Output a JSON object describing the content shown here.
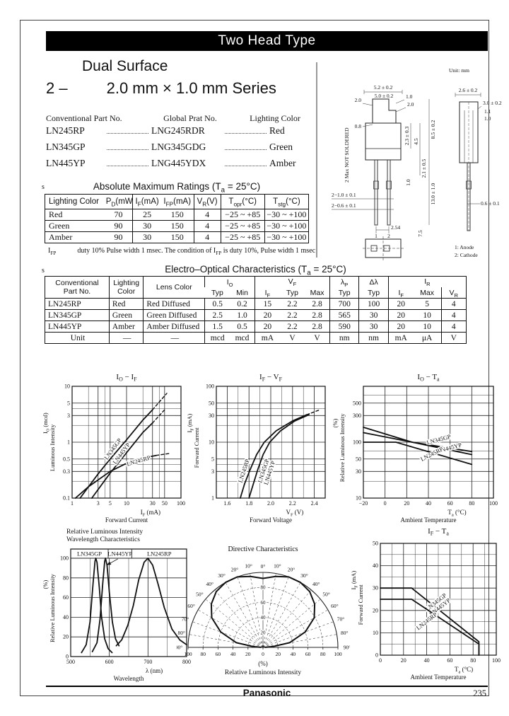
{
  "page": {
    "brand": "Panasonic",
    "number": "235"
  },
  "colors": {
    "ink": "#111111",
    "paper": "#ffffff",
    "banner_bg": "#000000",
    "banner_text": "#ffffff"
  },
  "header": {
    "banner": "Two Head Type",
    "subtitle": "Dual Surface",
    "series_prefix": "2 –",
    "series_title": "2.0 mm × 1.0 mm Series"
  },
  "parts": {
    "headers": [
      "Conventional Part No.",
      "Global Prat No.",
      "Lighting Color"
    ],
    "rows": [
      [
        "LN245RP",
        "LNG245RDR",
        "Red"
      ],
      [
        "LN345GP",
        "LNG345GDG",
        "Green"
      ],
      [
        "LN445YP",
        "LNG445YDX",
        "Amber"
      ]
    ]
  },
  "abs_max": {
    "marker": "s",
    "title": "Absolute Maximum Ratings (T_a = 25°C)",
    "headers": [
      "Lighting Color",
      "P_D(mW)",
      "I_F(mA)",
      "I_FP(mA)",
      "V_R(V)",
      "T_opr(°C)",
      "T_stg(°C)"
    ],
    "rows": [
      [
        "Red",
        "70",
        "25",
        "150",
        "4",
        "−25 ~ +85",
        "−30 ~ +100"
      ],
      [
        "Green",
        "90",
        "30",
        "150",
        "4",
        "−25 ~ +85",
        "−30 ~ +100"
      ],
      [
        "Amber",
        "90",
        "30",
        "150",
        "4",
        "−25 ~ +85",
        "−30 ~ +100"
      ]
    ],
    "footnote_label": "I_FP",
    "footnote": "duty 10%  Pulse width 1 msec. The condition of I_FP is duty 10%, Pulse width 1 msec"
  },
  "eo": {
    "marker": "s",
    "title": "Electro–Optical Characteristics (T_a = 25°C)",
    "head": {
      "part1": "Conventional",
      "part2": "Part No.",
      "light1": "Lighting",
      "light2": "Color",
      "lens": "Lens Color",
      "io": "I_O",
      "vf": "V_F",
      "ir": "I_R",
      "typ": "Typ",
      "min": "Min",
      "max": "Max",
      "if": "I_F",
      "vr": "V_R",
      "lp": "λ_P",
      "dl": "Δλ"
    },
    "rows": [
      [
        "LN245RP",
        "Red",
        "Red Diffused",
        "0.5",
        "0.2",
        "15",
        "2.2",
        "2.8",
        "700",
        "100",
        "20",
        "5",
        "4"
      ],
      [
        "LN345GP",
        "Green",
        "Green Diffused",
        "2.5",
        "1.0",
        "20",
        "2.2",
        "2.8",
        "565",
        "30",
        "20",
        "10",
        "4"
      ],
      [
        "LN445YP",
        "Amber",
        "Amber Diffused",
        "1.5",
        "0.5",
        "20",
        "2.2",
        "2.8",
        "590",
        "30",
        "20",
        "10",
        "4"
      ],
      [
        "Unit",
        "—",
        "—",
        "mcd",
        "mcd",
        "mA",
        "V",
        "V",
        "nm",
        "nm",
        "mA",
        "μA",
        "V"
      ]
    ]
  },
  "drawing": {
    "unit_note": "Unit: mm",
    "pin1": "1: Anode",
    "pin2": "2: Cathode",
    "labels": {
      "front_w1": "5.2 ± 0.2",
      "front_w2": "5.0 ± 0.2",
      "head_l": "2.0",
      "head_r1": "1.0",
      "head_r2": "2.0",
      "head_s": "0.8",
      "not_soldered": "2 Max NOT SOLDERED",
      "d1": "2.3 ± 0.3",
      "d2": "4.5",
      "d3": "8.5 ± 0.2",
      "d4": "2.1 ± 0.5",
      "d5": "1.0",
      "d6": "13.0 ± 1.0",
      "lead_w": "2−1.0 ± 0.1",
      "lead_t": "2−0.6 ± 0.1",
      "pitch": "2.54",
      "pin_l": "1",
      "pin_r": "2",
      "d7": "7.5",
      "side_w": "2.6 ± 0.2",
      "side_d1": "3.0 ± 0.2",
      "side_d2": "1.1",
      "side_d3": "1.0",
      "side_d4": "0.6 ± 0.1"
    }
  },
  "chart_data": [
    {
      "id": "luminous-intensity-vs-forward-current",
      "type": "line",
      "title": "I_O − I_F",
      "xlabel": "I_F  (mA)",
      "xlabel2": "Forward Current",
      "ylabel": "I_O (mcd)",
      "ylabel2": "Luminous Intensity",
      "x": {
        "type": "log",
        "min": 1,
        "max": 100,
        "ticks": [
          1,
          3,
          5,
          10,
          30,
          50,
          100
        ],
        "minor": [
          2,
          4,
          20,
          40
        ]
      },
      "y": {
        "type": "log",
        "min": 0.1,
        "max": 10,
        "ticks": [
          10,
          5,
          3,
          1,
          0.5,
          0.3,
          0.1
        ],
        "minor": [
          0.2,
          0.4,
          2,
          4
        ]
      },
      "series": [
        {
          "name": "LN345GP",
          "points": [
            [
              1.4,
              0.1
            ],
            [
              3,
              0.27
            ],
            [
              5,
              0.5
            ],
            [
              10,
              1.1
            ],
            [
              20,
              2.5
            ],
            [
              30,
              3.8
            ]
          ],
          "dash_points": [
            [
              30,
              3.8
            ],
            [
              55,
              7.5
            ]
          ],
          "label": {
            "x": 6,
            "y": 0.72,
            "rotate": -54
          }
        },
        {
          "name": "LN445YP",
          "points": [
            [
              2.3,
              0.1
            ],
            [
              5,
              0.28
            ],
            [
              10,
              0.65
            ],
            [
              20,
              1.5
            ],
            [
              30,
              2.2
            ]
          ],
          "dash_points": [
            [
              30,
              2.2
            ],
            [
              50,
              3.8
            ]
          ],
          "label": {
            "x": 8.6,
            "y": 0.6,
            "rotate": -54
          }
        },
        {
          "name": "LN245RP",
          "points": [
            [
              1.15,
              0.1
            ],
            [
              2,
              0.16
            ],
            [
              5,
              0.3
            ],
            [
              10,
              0.42
            ],
            [
              20,
              0.52
            ],
            [
              35,
              0.58
            ]
          ],
          "dash_points": [
            [
              35,
              0.58
            ],
            [
              62,
              0.63
            ]
          ],
          "label": {
            "x": 17,
            "y": 0.43,
            "rotate": -16
          }
        }
      ]
    },
    {
      "id": "forward-current-vs-forward-voltage",
      "type": "line",
      "title": "I_F − V_F",
      "xlabel": "V_F  (V)",
      "xlabel2": "Forward Voltage",
      "ylabel": "I_F  (mA)",
      "ylabel2": "Forward Current",
      "x": {
        "type": "linear",
        "min": 1.5,
        "max": 2.5,
        "ticks": [
          1.6,
          1.8,
          2.0,
          2.2,
          2.4
        ],
        "minor": [
          1.7,
          1.9,
          2.1,
          2.3
        ],
        "decimals": 1
      },
      "y": {
        "type": "log",
        "min": 1,
        "max": 100,
        "ticks": [
          1,
          3,
          5,
          10,
          30,
          50,
          100
        ],
        "minor": [
          2,
          4,
          20,
          40
        ]
      },
      "series": [
        {
          "name": "LN245RP",
          "points": [
            [
              1.72,
              1
            ],
            [
              1.76,
              1.8
            ],
            [
              1.81,
              3.2
            ],
            [
              1.87,
              6
            ],
            [
              1.94,
              10
            ],
            [
              2.05,
              16
            ],
            [
              2.2,
              24
            ],
            [
              2.33,
              31
            ]
          ],
          "dash_points": [
            [
              2.33,
              31
            ],
            [
              2.45,
              38
            ]
          ],
          "label": {
            "x": 1.77,
            "y": 3,
            "rotate": -72
          }
        },
        {
          "name": "LN345GP\nLN445YP",
          "points": [
            [
              1.8,
              1
            ],
            [
              1.84,
              1.8
            ],
            [
              1.88,
              3.2
            ],
            [
              1.93,
              6
            ],
            [
              1.99,
              10
            ],
            [
              2.09,
              16
            ],
            [
              2.22,
              24
            ],
            [
              2.35,
              31
            ]
          ],
          "label": {
            "x": 1.95,
            "y": 3,
            "rotate": -72
          }
        }
      ]
    },
    {
      "id": "relative-luminous-intensity-vs-ambient-temperature",
      "type": "line",
      "title": "I_O − T_a",
      "xlabel": "T_a  (°C)",
      "xlabel2": "Ambient Temperature",
      "ylabel": "(%)",
      "ylabel2": "Relative Luminous Intensity",
      "x": {
        "type": "linear",
        "min": -20,
        "max": 100,
        "ticks": [
          -20,
          0,
          20,
          40,
          60,
          80,
          100
        ]
      },
      "y": {
        "type": "log",
        "min": 10,
        "max": 1000,
        "ticks": [
          500,
          300,
          100,
          50,
          30,
          10
        ],
        "minor": [
          20,
          70,
          200,
          700
        ]
      },
      "series": [
        {
          "name": "LN345GP",
          "points": [
            [
              -20,
              185
            ],
            [
              25,
              100
            ],
            [
              80,
              68
            ]
          ],
          "label": {
            "x": 50,
            "y": 103,
            "rotate": -15
          }
        },
        {
          "name": "LN445YP",
          "points": [
            [
              -20,
              148
            ],
            [
              25,
              100
            ],
            [
              80,
              60
            ]
          ],
          "label": {
            "x": 60,
            "y": 73,
            "rotate": -15
          }
        },
        {
          "name": "LN245RP",
          "points": [
            [
              -20,
              100
            ],
            [
              10,
              100
            ],
            [
              80,
              40
            ]
          ],
          "label": {
            "x": 44,
            "y": 57,
            "rotate": -27
          }
        }
      ]
    },
    {
      "id": "wavelength-characteristics",
      "type": "line",
      "title_lines": [
        "Relative Luminous Intensity",
        "Wavelength Characteristics"
      ],
      "xlabel": "λ  (nm)",
      "xlabel2": "Wavelength",
      "ylabel": "(%)",
      "ylabel2": "Relative Luminous Intensity",
      "x": {
        "type": "linear",
        "min": 500,
        "max": 800,
        "ticks": [
          500,
          600,
          700,
          800
        ],
        "minor": [
          550,
          650,
          750
        ]
      },
      "y": {
        "type": "linear",
        "min": 0,
        "max": 100,
        "ticks": [
          0,
          20,
          40,
          60,
          80,
          100
        ]
      },
      "label_band": {
        "height": 13,
        "dividers": [
          597,
          658
        ],
        "labels": [
          "LN345GP",
          "LN445YP",
          "LN245RP"
        ],
        "arrow": {
          "from_x": 622,
          "to": [
            593,
            93
          ]
        }
      },
      "series": [
        {
          "name": "LN345GP",
          "points": [
            [
              528,
              4
            ],
            [
              540,
              12
            ],
            [
              550,
              35
            ],
            [
              558,
              75
            ],
            [
              563,
              97
            ],
            [
              565,
              100
            ],
            [
              568,
              96
            ],
            [
              574,
              70
            ],
            [
              580,
              40
            ],
            [
              588,
              18
            ],
            [
              597,
              8
            ],
            [
              607,
              4
            ]
          ]
        },
        {
          "name": "LN445YP",
          "points": [
            [
              556,
              5
            ],
            [
              568,
              14
            ],
            [
              576,
              38
            ],
            [
              583,
              75
            ],
            [
              588,
              97
            ],
            [
              590,
              100
            ],
            [
              594,
              93
            ],
            [
              600,
              65
            ],
            [
              608,
              35
            ],
            [
              616,
              18
            ],
            [
              625,
              11
            ]
          ]
        },
        {
          "name": "LN245RP",
          "points": [
            [
              618,
              11
            ],
            [
              632,
              17
            ],
            [
              648,
              32
            ],
            [
              662,
              52
            ],
            [
              676,
              78
            ],
            [
              690,
              96
            ],
            [
              700,
              100
            ],
            [
              712,
              93
            ],
            [
              726,
              74
            ],
            [
              742,
              50
            ],
            [
              762,
              28
            ],
            [
              782,
              17
            ],
            [
              800,
              12
            ]
          ]
        }
      ]
    },
    {
      "id": "directive-characteristics",
      "type": "polar",
      "title": "Directive Characteristics",
      "xlabel": "(%)",
      "xlabel2": "Relative Luminous Intensity",
      "angle_ticks": [
        10,
        20,
        30,
        40,
        50,
        60,
        70,
        80
      ],
      "r_ticks": [
        20,
        40,
        60,
        80,
        100
      ],
      "inner_labels": [
        80,
        60,
        40,
        20
      ],
      "bottom_ticks": [
        100,
        80,
        60,
        40,
        20,
        0,
        20,
        40,
        60,
        80,
        100
      ],
      "curve": [
        [
          -88,
          3
        ],
        [
          -85,
          14
        ],
        [
          -80,
          36
        ],
        [
          -70,
          60
        ],
        [
          -60,
          79
        ],
        [
          -50,
          90
        ],
        [
          -40,
          97
        ],
        [
          -30,
          100
        ],
        [
          -20,
          100
        ],
        [
          -10,
          96
        ],
        [
          0,
          92
        ],
        [
          10,
          96
        ],
        [
          20,
          100
        ],
        [
          30,
          100
        ],
        [
          40,
          97
        ],
        [
          50,
          90
        ],
        [
          60,
          79
        ],
        [
          70,
          60
        ],
        [
          80,
          36
        ],
        [
          85,
          14
        ],
        [
          88,
          3
        ]
      ]
    },
    {
      "id": "forward-current-vs-ambient-temperature",
      "type": "line",
      "title": "I_F − T_a",
      "xlabel": "T_a  (°C)",
      "xlabel2": "Ambient Temperature",
      "ylabel": "I_F  (mA)",
      "ylabel2": "Forward Current",
      "x": {
        "type": "linear",
        "min": 0,
        "max": 100,
        "ticks": [
          0,
          20,
          40,
          60,
          80,
          100
        ],
        "minor": [
          10,
          30,
          50,
          70,
          90
        ]
      },
      "y": {
        "type": "linear",
        "min": 0,
        "max": 50,
        "ticks": [
          0,
          10,
          20,
          30,
          40,
          50
        ],
        "minor": [
          5,
          15,
          25,
          35,
          45
        ]
      },
      "series": [
        {
          "name": "LN345GP\nLN445YP",
          "points": [
            [
              0,
              30
            ],
            [
              27,
              30
            ],
            [
              85,
              6
            ],
            [
              85,
              0
            ]
          ],
          "label": {
            "x": 49,
            "y": 23,
            "rotate": -38
          }
        },
        {
          "name": "LN245RP",
          "points": [
            [
              0,
              25
            ],
            [
              27,
              25
            ],
            [
              85,
              5
            ],
            [
              85,
              0
            ]
          ],
          "label": {
            "x": 41,
            "y": 14.5,
            "rotate": -38
          }
        }
      ]
    }
  ]
}
